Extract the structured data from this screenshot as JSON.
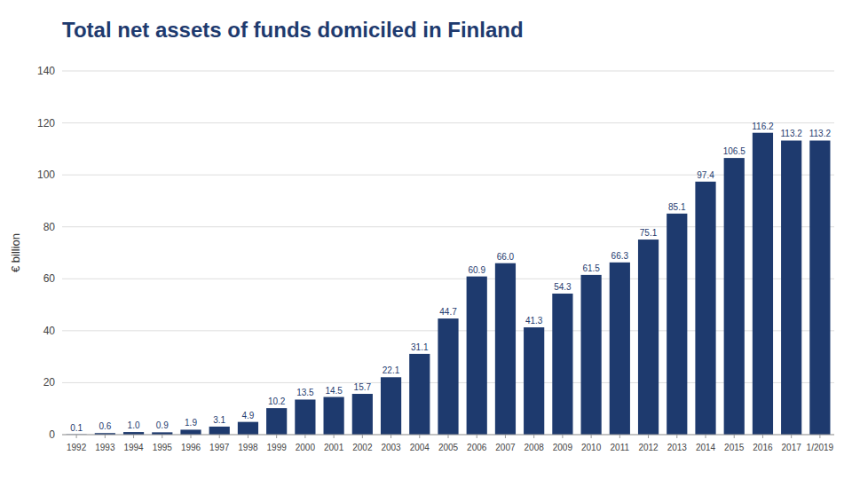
{
  "chart_data": {
    "type": "bar",
    "title": "Total net assets of funds domiciled in Finland",
    "ylabel": "€ billion",
    "categories": [
      "1992",
      "1993",
      "1994",
      "1995",
      "1996",
      "1997",
      "1998",
      "1999",
      "2000",
      "2001",
      "2002",
      "2003",
      "2004",
      "2005",
      "2006",
      "2007",
      "2008",
      "2009",
      "2010",
      "2011",
      "2012",
      "2013",
      "2014",
      "2015",
      "2016",
      "2017",
      "1/2019"
    ],
    "values": [
      0.1,
      0.6,
      1.0,
      0.9,
      1.9,
      3.1,
      4.9,
      10.2,
      13.5,
      14.5,
      15.7,
      22.1,
      31.1,
      44.7,
      60.9,
      66.0,
      41.3,
      54.3,
      61.5,
      66.3,
      75.1,
      85.1,
      97.4,
      106.5,
      116.2,
      113.2,
      113.2
    ],
    "value_labels": [
      "0.1",
      "0.6",
      "1.0",
      "0.9",
      "1.9",
      "3.1",
      "4.9",
      "10.2",
      "13.5",
      "14.5",
      "15.7",
      "22.1",
      "31.1",
      "44.7",
      "60.9",
      "66.0",
      "41.3",
      "54.3",
      "61.5",
      "66.3",
      "75.1",
      "85.1",
      "97.4",
      "106.5",
      "116.2",
      "113.2",
      "113.2"
    ],
    "color": "#1e3a6e",
    "ylim": [
      0,
      140
    ],
    "yticks": [
      0,
      20,
      40,
      60,
      80,
      100,
      120,
      140
    ],
    "grid": true,
    "data_labels": true
  }
}
